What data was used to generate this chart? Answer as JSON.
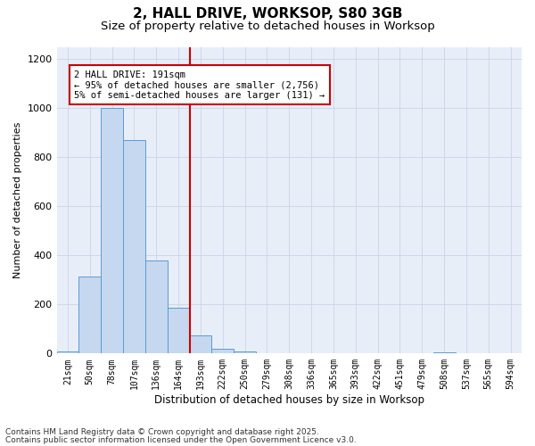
{
  "title1": "2, HALL DRIVE, WORKSOP, S80 3GB",
  "title2": "Size of property relative to detached houses in Worksop",
  "xlabel": "Distribution of detached houses by size in Worksop",
  "ylabel": "Number of detached properties",
  "bin_labels": [
    "21sqm",
    "50sqm",
    "78sqm",
    "107sqm",
    "136sqm",
    "164sqm",
    "193sqm",
    "222sqm",
    "250sqm",
    "279sqm",
    "308sqm",
    "336sqm",
    "365sqm",
    "393sqm",
    "422sqm",
    "451sqm",
    "479sqm",
    "508sqm",
    "537sqm",
    "565sqm",
    "594sqm"
  ],
  "bar_values": [
    10,
    315,
    1000,
    870,
    380,
    185,
    75,
    20,
    10,
    0,
    0,
    0,
    0,
    0,
    0,
    0,
    0,
    5,
    0,
    0,
    0
  ],
  "bar_color": "#c5d8ef",
  "bar_edge_color": "#5b9bd5",
  "vline_x": 5.5,
  "vline_color": "#cc0000",
  "annotation_text": "2 HALL DRIVE: 191sqm\n← 95% of detached houses are smaller (2,756)\n5% of semi-detached houses are larger (131) →",
  "annotation_box_color": "#ffffff",
  "annotation_box_edge": "#cc0000",
  "ylim": [
    0,
    1250
  ],
  "yticks": [
    0,
    200,
    400,
    600,
    800,
    1000,
    1200
  ],
  "grid_color": "#c8d4e8",
  "bg_color": "#e8eef8",
  "footer1": "Contains HM Land Registry data © Crown copyright and database right 2025.",
  "footer2": "Contains public sector information licensed under the Open Government Licence v3.0.",
  "title1_fontsize": 11,
  "title2_fontsize": 9.5,
  "footer_fontsize": 6.5,
  "annotation_fontsize": 7.5,
  "xlabel_fontsize": 8.5,
  "ylabel_fontsize": 8,
  "xtick_fontsize": 7,
  "ytick_fontsize": 8
}
